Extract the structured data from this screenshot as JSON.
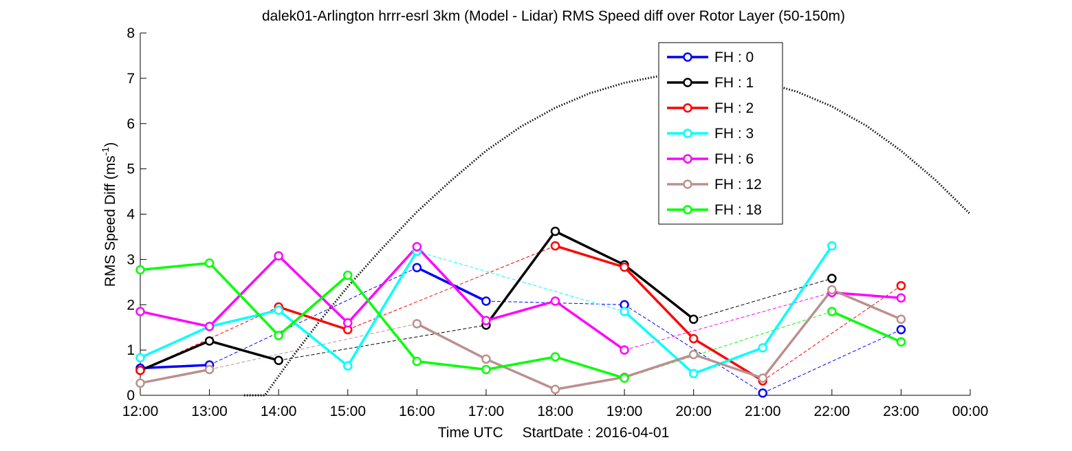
{
  "chart_data": {
    "type": "line",
    "title": "dalek01-Arlington hrrr-esrl 3km (Model - Lidar) RMS Speed diff over Rotor Layer (50-150m)",
    "xlabel_text": "Time UTC",
    "xlabel_date": "StartDate : 2016-04-01",
    "ylabel": "RMS Speed Diff (ms",
    "ylabel_exp": "-1",
    "ylabel_close": ")",
    "x_ticks": [
      "12:00",
      "13:00",
      "14:00",
      "15:00",
      "16:00",
      "17:00",
      "18:00",
      "19:00",
      "20:00",
      "21:00",
      "22:00",
      "23:00",
      "00:00"
    ],
    "x_hours": [
      12,
      13,
      14,
      15,
      16,
      17,
      18,
      19,
      20,
      21,
      22,
      23,
      24
    ],
    "xlim": [
      12,
      24
    ],
    "ylim": [
      0,
      8
    ],
    "y_ticks": [
      "0",
      "1",
      "2",
      "3",
      "4",
      "5",
      "6",
      "7",
      "8"
    ],
    "grid": false,
    "legend_position": "top-right",
    "series": [
      {
        "name": "FH : 0",
        "color": "#0000ff",
        "points": [
          [
            12,
            0.6
          ],
          [
            13,
            0.67
          ],
          [
            16,
            2.82
          ],
          [
            17,
            2.08
          ],
          [
            19,
            2.0
          ],
          [
            21,
            0.05
          ],
          [
            23,
            1.45
          ]
        ]
      },
      {
        "name": "FH : 1",
        "color": "#000000",
        "points": [
          [
            12,
            0.55
          ],
          [
            13,
            1.2
          ],
          [
            14,
            0.77
          ],
          [
            17,
            1.55
          ],
          [
            18,
            3.62
          ],
          [
            19,
            2.88
          ],
          [
            20,
            1.68
          ],
          [
            22,
            2.58
          ]
        ]
      },
      {
        "name": "FH : 2",
        "color": "#ff0000",
        "points": [
          [
            12,
            0.55
          ],
          [
            14,
            1.95
          ],
          [
            15,
            1.45
          ],
          [
            18,
            3.3
          ],
          [
            19,
            2.83
          ],
          [
            20,
            1.25
          ],
          [
            21,
            0.32
          ],
          [
            23,
            2.42
          ]
        ]
      },
      {
        "name": "FH : 3",
        "color": "#00ffff",
        "points": [
          [
            12,
            0.83
          ],
          [
            13,
            1.52
          ],
          [
            14,
            1.88
          ],
          [
            15,
            0.65
          ],
          [
            16,
            3.18
          ],
          [
            19,
            1.85
          ],
          [
            20,
            0.48
          ],
          [
            21,
            1.05
          ],
          [
            22,
            3.3
          ]
        ]
      },
      {
        "name": "FH : 6",
        "color": "#ff00ff",
        "points": [
          [
            12,
            1.85
          ],
          [
            13,
            1.52
          ],
          [
            14,
            3.08
          ],
          [
            15,
            1.6
          ],
          [
            16,
            3.28
          ],
          [
            17,
            1.65
          ],
          [
            18,
            2.08
          ],
          [
            19,
            1.0
          ],
          [
            22,
            2.27
          ],
          [
            23,
            2.15
          ]
        ]
      },
      {
        "name": "FH : 12",
        "color": "#bc8f8f",
        "points": [
          [
            12,
            0.27
          ],
          [
            13,
            0.57
          ],
          [
            16,
            1.58
          ],
          [
            17,
            0.8
          ],
          [
            18,
            0.13
          ],
          [
            19,
            0.4
          ],
          [
            20,
            0.9
          ],
          [
            21,
            0.38
          ],
          [
            22,
            2.33
          ],
          [
            23,
            1.68
          ]
        ]
      },
      {
        "name": "FH : 18",
        "color": "#00ff00",
        "points": [
          [
            12,
            2.77
          ],
          [
            13,
            2.92
          ],
          [
            14,
            1.32
          ],
          [
            15,
            2.65
          ],
          [
            16,
            0.75
          ],
          [
            17,
            0.57
          ],
          [
            18,
            0.85
          ],
          [
            19,
            0.38
          ],
          [
            22,
            1.85
          ],
          [
            23,
            1.18
          ]
        ]
      }
    ],
    "elevation_curve": {
      "color": "#000000",
      "points": [
        [
          13.5,
          0
        ],
        [
          13.8,
          0
        ],
        [
          14.2,
          0.85
        ],
        [
          14.6,
          1.65
        ],
        [
          15.0,
          2.4
        ],
        [
          15.5,
          3.25
        ],
        [
          16.0,
          4.05
        ],
        [
          16.5,
          4.75
        ],
        [
          17.0,
          5.4
        ],
        [
          17.5,
          5.93
        ],
        [
          18.0,
          6.35
        ],
        [
          18.5,
          6.67
        ],
        [
          19.0,
          6.9
        ],
        [
          19.5,
          7.05
        ],
        [
          20.0,
          7.1
        ],
        [
          20.5,
          7.06
        ],
        [
          21.0,
          6.92
        ],
        [
          21.5,
          6.7
        ],
        [
          22.0,
          6.38
        ],
        [
          22.5,
          5.95
        ],
        [
          23.0,
          5.4
        ],
        [
          23.5,
          4.75
        ],
        [
          24.0,
          4.0
        ]
      ]
    }
  }
}
